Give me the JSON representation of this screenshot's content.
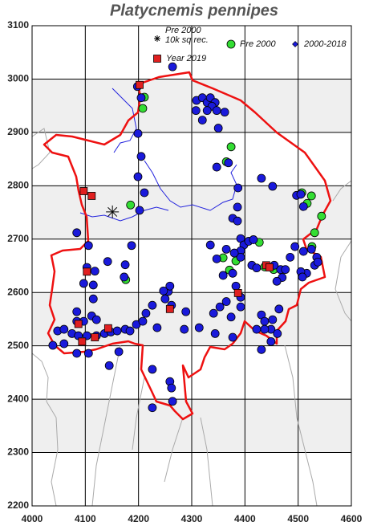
{
  "chart_data": {
    "type": "scatter",
    "title": "Platycnemis pennipes",
    "xlim": [
      4000,
      4600
    ],
    "ylim": [
      2200,
      3100
    ],
    "xticks": [
      4000,
      4100,
      4200,
      4300,
      4400,
      4500,
      4600
    ],
    "yticks": [
      2200,
      2300,
      2400,
      2500,
      2600,
      2700,
      2800,
      2900,
      3000,
      3100
    ],
    "grid": true,
    "shaded_bands": true,
    "series": [
      {
        "name": "Pre 2000 10k sq rec.",
        "color": "#000000",
        "marker": "star",
        "x": [
          4151
        ],
        "y": [
          2751
        ]
      },
      {
        "name": "Pre 2000",
        "color": "#33dd33",
        "marker": "circle",
        "x": [
          4211,
          4208,
          4374,
          4365,
          4185,
          4176,
          4427,
          4359,
          4371,
          4507,
          4525,
          4517,
          4544,
          4531,
          4526,
          4383,
          4437,
          4454
        ],
        "y": [
          2966,
          2945,
          2873,
          2845,
          2764,
          2624,
          2694,
          2665,
          2642,
          2787,
          2781,
          2767,
          2743,
          2712,
          2686,
          2659,
          2648,
          2643
        ]
      },
      {
        "name": "2000-2018",
        "color": "#1a1adb",
        "marker": "circle",
        "legend_marker": "diamond",
        "x": [
          4264,
          4198,
          4205,
          4199,
          4205,
          4199,
          4202,
          4211,
          4309,
          4320,
          4329,
          4335,
          4344,
          4338,
          4347,
          4329,
          4308,
          4350,
          4362,
          4320,
          4347,
          4369,
          4387,
          4431,
          4452,
          4497,
          4510,
          4505,
          4386,
          4377,
          4386,
          4392,
          4398,
          4392,
          4407,
          4416,
          4392,
          4380,
          4335,
          4365,
          4347,
          4377,
          4359,
          4413,
          4422,
          4467,
          4470,
          4460,
          4485,
          4494,
          4510,
          4525,
          4535,
          4531,
          4537,
          4516,
          4505,
          4508,
          4476,
          4455,
          4383,
          4392,
          4353,
          4365,
          4392,
          4341,
          4344,
          4314,
          4286,
          4289,
          4262,
          4256,
          4259,
          4247,
          4250,
          4431,
          4437,
          4452,
          4464,
          4449,
          4437,
          4422,
          4461,
          4431,
          4449,
          4377,
          4374,
          4084,
          4106,
          4103,
          4118,
          4097,
          4115,
          4115,
          4084,
          4084,
          4097,
          4112,
          4121,
          4142,
          4175,
          4187,
          4173,
          4048,
          4060,
          4075,
          4087,
          4103,
          4121,
          4136,
          4148,
          4160,
          4175,
          4184,
          4196,
          4208,
          4039,
          4060,
          4084,
          4106,
          4163,
          4145,
          4235,
          4214,
          4226,
          4226,
          4259,
          4262,
          4264,
          4226
        ],
        "y": [
          3023,
          2986,
          2965,
          2898,
          2855,
          2817,
          2754,
          2787,
          2960,
          2965,
          2956,
          2965,
          2956,
          2949,
          2941,
          2941,
          2941,
          2908,
          2938,
          2923,
          2835,
          2843,
          2796,
          2814,
          2799,
          2782,
          2761,
          2784,
          2760,
          2739,
          2734,
          2701,
          2689,
          2678,
          2696,
          2699,
          2666,
          2674,
          2689,
          2681,
          2663,
          2636,
          2632,
          2651,
          2646,
          2643,
          2628,
          2621,
          2666,
          2686,
          2677,
          2681,
          2666,
          2651,
          2657,
          2636,
          2639,
          2629,
          2643,
          2651,
          2612,
          2591,
          2573,
          2583,
          2573,
          2561,
          2523,
          2534,
          2531,
          2564,
          2576,
          2602,
          2612,
          2603,
          2588,
          2558,
          2546,
          2549,
          2569,
          2531,
          2531,
          2531,
          2523,
          2493,
          2508,
          2516,
          2554,
          2712,
          2688,
          2647,
          2640,
          2617,
          2614,
          2588,
          2564,
          2546,
          2546,
          2556,
          2549,
          2658,
          2652,
          2688,
          2629,
          2528,
          2531,
          2523,
          2519,
          2519,
          2519,
          2523,
          2526,
          2528,
          2531,
          2528,
          2540,
          2546,
          2501,
          2504,
          2486,
          2486,
          2489,
          2463,
          2534,
          2561,
          2576,
          2456,
          2433,
          2421,
          2396,
          2384
        ]
      },
      {
        "name": "Year 2019",
        "color": "#e02020",
        "marker": "square",
        "x": [
          4202,
          4097,
          4112,
          4103,
          4087,
          4118,
          4094,
          4143,
          4259,
          4387,
          4440,
          4446
        ],
        "y": [
          2989,
          2790,
          2781,
          2639,
          2541,
          2516,
          2508,
          2533,
          2569,
          2599,
          2651,
          2647
        ]
      }
    ]
  }
}
